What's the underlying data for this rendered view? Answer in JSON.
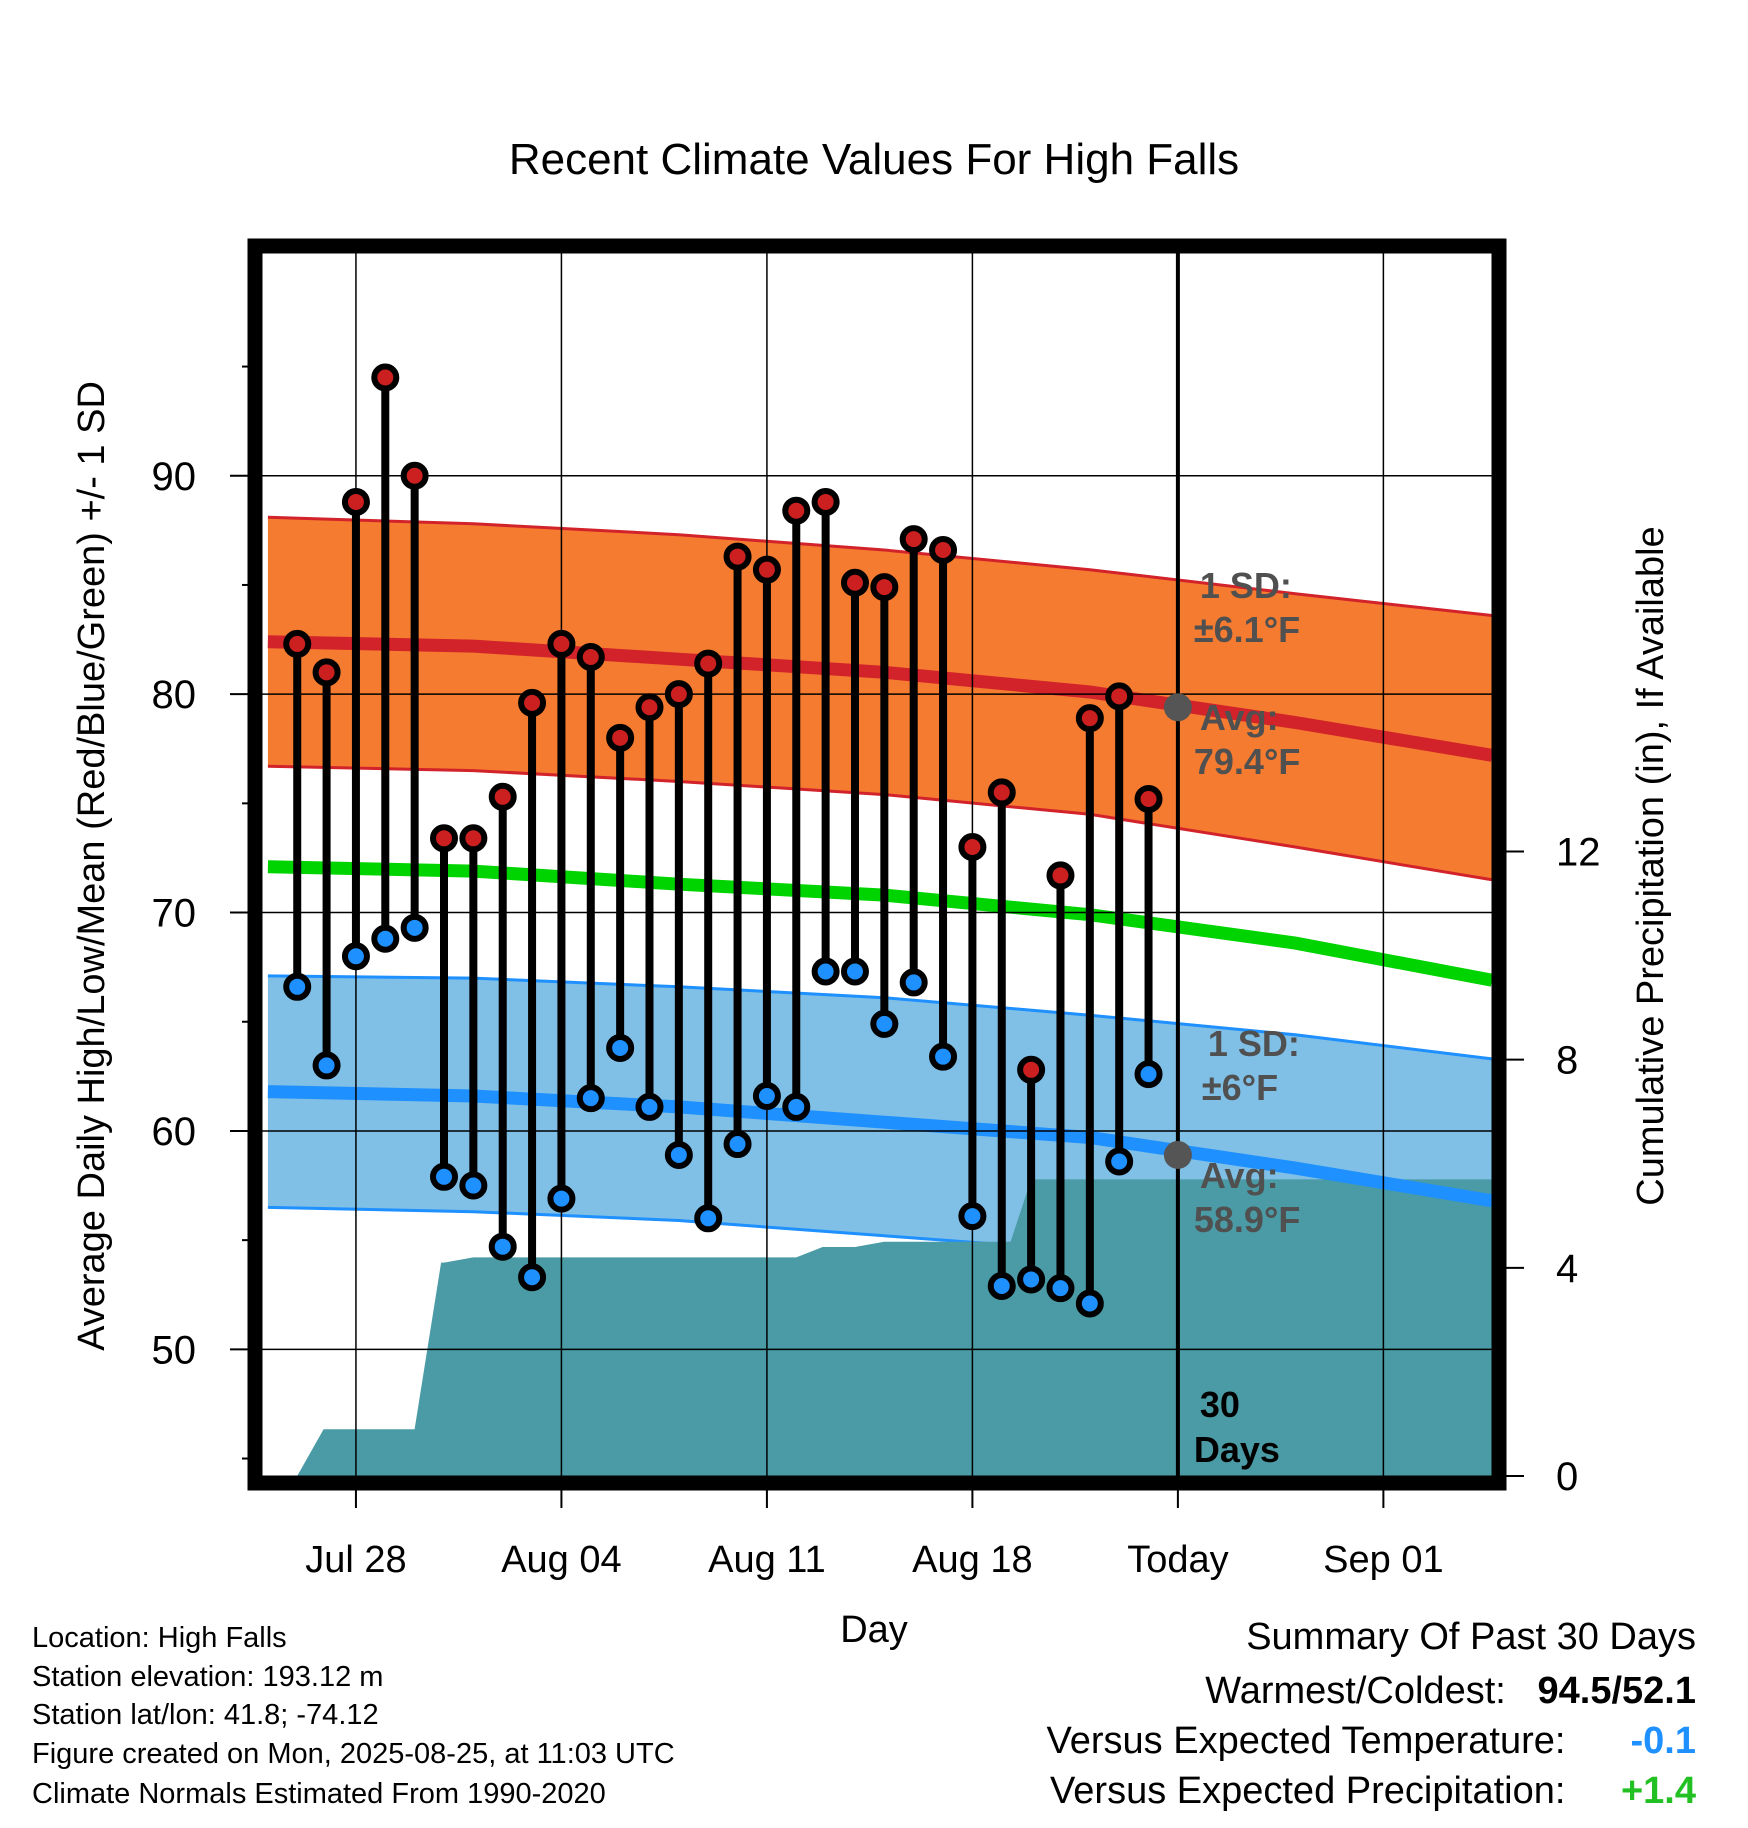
{
  "chart_data": {
    "type": "line",
    "title": "Recent Climate Values For High Falls",
    "xlabel": "Day",
    "ylabel": "Average Daily High/Low/Mean (Red/Blue/Green) +/- 1 SD",
    "y2label": "Cumulative Precipitation (in), If Available",
    "x_tick_labels": [
      "Jul 28",
      "Aug 04",
      "Aug 11",
      "Aug 18",
      "Today",
      "Sep 01"
    ],
    "x_tick_days": [
      3,
      10,
      17,
      24,
      31,
      38
    ],
    "x_range_days": [
      -0.2,
      41.7
    ],
    "ylim": [
      44.2,
      100.2
    ],
    "y_ticks": [
      50,
      60,
      70,
      80,
      90
    ],
    "y2lim": [
      0,
      23.5
    ],
    "y2_ticks": [
      0,
      4,
      8,
      12
    ],
    "grid": true,
    "today_day": 31,
    "today_label": "30 Days",
    "daily": {
      "days": [
        1,
        2,
        3,
        4,
        5,
        6,
        7,
        8,
        9,
        10,
        11,
        12,
        13,
        14,
        15,
        16,
        17,
        18,
        19,
        20,
        21,
        22,
        23,
        24,
        25,
        26,
        27,
        28,
        29,
        30
      ],
      "high": [
        82.3,
        81.0,
        88.8,
        94.5,
        90.0,
        73.4,
        73.4,
        75.3,
        79.6,
        82.3,
        81.7,
        78.0,
        79.4,
        80.0,
        81.4,
        86.3,
        85.7,
        88.4,
        88.8,
        85.1,
        84.9,
        87.1,
        86.6,
        73.0,
        75.5,
        62.8,
        71.7,
        78.9,
        79.9,
        75.2
      ],
      "low": [
        66.6,
        63.0,
        68.0,
        68.8,
        69.3,
        57.9,
        57.5,
        54.7,
        53.3,
        56.9,
        61.5,
        63.8,
        61.1,
        58.9,
        56.0,
        59.4,
        61.6,
        61.1,
        67.3,
        67.3,
        64.9,
        66.8,
        63.4,
        56.1,
        52.9,
        53.2,
        52.8,
        52.1,
        58.6,
        62.6
      ]
    },
    "normals": {
      "days": [
        0,
        7,
        14,
        21,
        28,
        35,
        41.7
      ],
      "high_avg": [
        82.4,
        82.2,
        81.6,
        81.0,
        80.1,
        78.7,
        77.2
      ],
      "high_upper": [
        88.1,
        87.8,
        87.3,
        86.6,
        85.7,
        84.6,
        83.6
      ],
      "high_lower": [
        76.7,
        76.5,
        76.0,
        75.4,
        74.5,
        73.0,
        71.5
      ],
      "mean_avg": [
        72.1,
        71.9,
        71.3,
        70.8,
        69.9,
        68.6,
        66.9
      ],
      "low_avg": [
        61.8,
        61.6,
        61.1,
        60.4,
        59.7,
        58.3,
        56.8
      ],
      "low_upper": [
        67.1,
        67.0,
        66.6,
        66.1,
        65.3,
        64.4,
        63.3
      ],
      "low_lower": [
        56.5,
        56.3,
        55.9,
        55.2,
        54.5,
        null,
        null
      ]
    },
    "precipitation": {
      "days": [
        1,
        1.9,
        2,
        5,
        5.9,
        6,
        7,
        8,
        10,
        11,
        12,
        13,
        14,
        15,
        16,
        17,
        18,
        18.9,
        19,
        20,
        21,
        22,
        23,
        24,
        25,
        25.3,
        26,
        27,
        28,
        29,
        30,
        31,
        41.7
      ],
      "values": [
        0,
        0.9,
        0.9,
        0.9,
        4.1,
        4.1,
        4.2,
        4.2,
        4.2,
        4.2,
        4.2,
        4.2,
        4.2,
        4.2,
        4.2,
        4.2,
        4.2,
        4.4,
        4.4,
        4.4,
        4.5,
        4.5,
        4.5,
        4.5,
        4.5,
        4.5,
        5.7,
        5.7,
        5.7,
        5.7,
        5.7,
        5.7,
        5.7
      ]
    },
    "annotations": {
      "high_sd_label": "1 SD:",
      "high_sd_value": "±6.1°F",
      "high_avg_label": "Avg:",
      "high_avg_value": "79.4°F",
      "low_sd_label": "1 SD:",
      "low_sd_value": "±6°F",
      "low_avg_label": "Avg:",
      "low_avg_value": "58.9°F",
      "today_high_avg": 79.4,
      "today_low_avg": 58.9
    },
    "colors": {
      "high_band": "#f47b30",
      "high_line": "#d2222a",
      "mean_line": "#00d400",
      "low_band": "#80bfe6",
      "low_line": "#1e90ff",
      "precip": "#4a9ba5",
      "high_point": "#cc2020",
      "low_point": "#1e90ff",
      "annotation_text": "#505050"
    }
  },
  "info": {
    "location": "Location: High Falls",
    "elevation": "Station elevation: 193.12 m",
    "latlon": "Station lat/lon: 41.8; -74.12",
    "created": "Figure created on Mon, 2025-08-25, at 11:03 UTC",
    "normals": "Climate Normals Estimated From 1990-2020"
  },
  "summary": {
    "title": "Summary Of Past 30 Days",
    "warm_cold_label": "Warmest/Coldest:",
    "warm_cold_value": "94.5/52.1",
    "temp_label": "Versus Expected Temperature:",
    "temp_value": "-0.1",
    "temp_color": "#1e90ff",
    "precip_label": "Versus Expected Precipitation:",
    "precip_value": "+1.4",
    "precip_color": "#22c022"
  }
}
